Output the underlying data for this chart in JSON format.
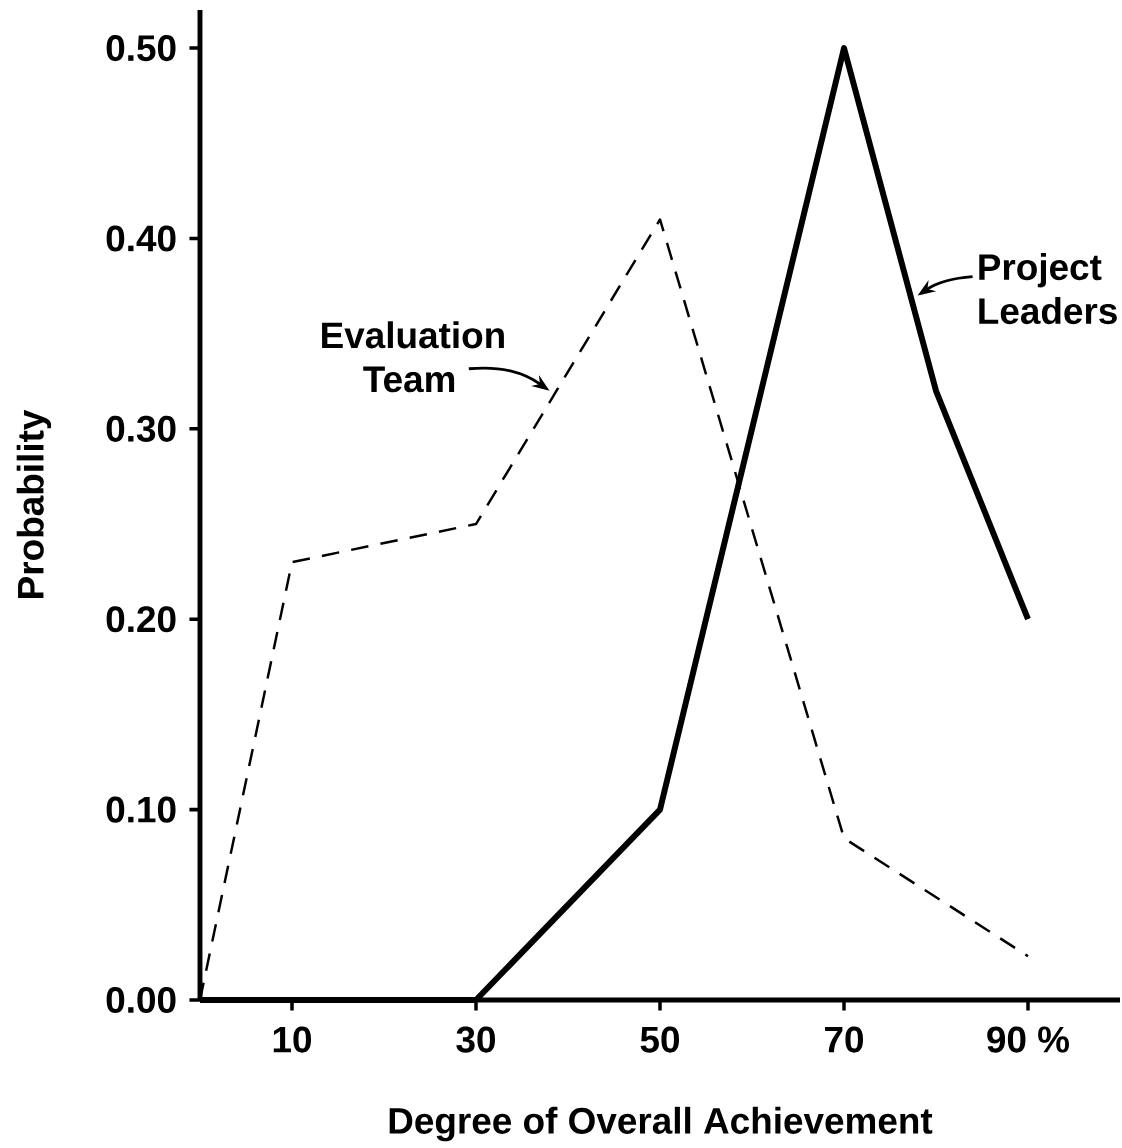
{
  "chart_data": {
    "type": "line",
    "xlabel": "Degree of Overall Achievement",
    "ylabel": "Probability",
    "x": [
      0,
      10,
      30,
      50,
      70,
      80,
      90
    ],
    "series": [
      {
        "color": "#000000",
        "line_style": "dashed",
        "x": [
          0,
          10,
          30,
          50,
          70,
          90
        ],
        "values": [
          0,
          0.23,
          0.25,
          0.41,
          0.085,
          0.023
        ]
      },
      {
        "color": "#000000",
        "line_style": "solid",
        "values": [
          0,
          0,
          0,
          0.1,
          0.5,
          0.32,
          0.2
        ]
      }
    ],
    "xlim": [
      0,
      100
    ],
    "ylim": [
      0,
      0.52
    ],
    "xticks": [
      10,
      30,
      50,
      70,
      {
        "value": 90,
        "label": "90 %"
      }
    ],
    "yticks": [
      {
        "value": 0,
        "label": "0.00"
      },
      {
        "value": 0.1,
        "label": "0.10"
      },
      {
        "value": 0.2,
        "label": "0.20"
      },
      {
        "value": 0.3,
        "label": "0.30"
      },
      {
        "value": 0.4,
        "label": "0.40"
      },
      {
        "value": 0.5,
        "label": "0.50"
      }
    ],
    "annotations": [
      {
        "text": "Evaluation Team",
        "x": 38,
        "y": 0.32
      },
      {
        "text": "Project Leaders",
        "x": 78,
        "y": 0.37
      }
    ],
    "marker": "none"
  }
}
